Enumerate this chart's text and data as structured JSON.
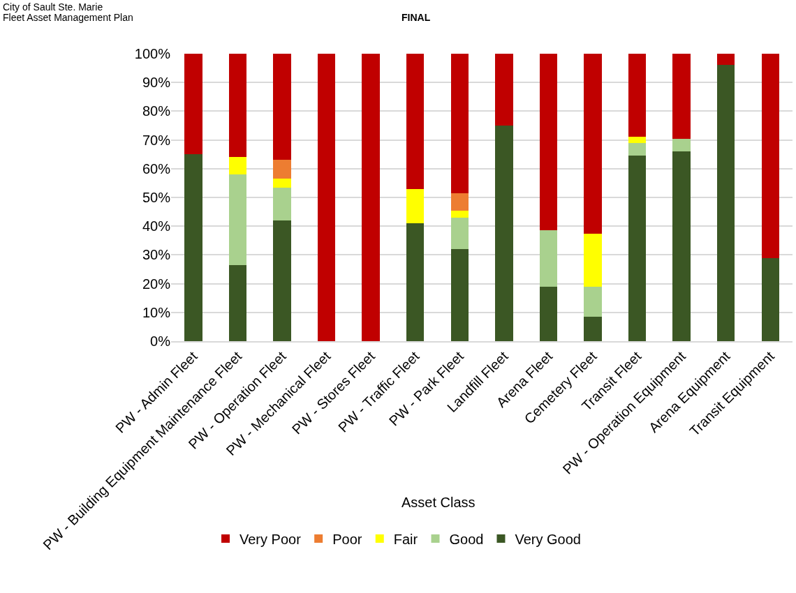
{
  "chart_data": {
    "type": "bar",
    "stacked": true,
    "xlabel": "Asset Class",
    "annotations": [
      "City of Sault Ste. Marie",
      "Fleet Asset Management Plan",
      "FINAL"
    ],
    "categories": [
      "PW - Admin Fleet",
      "PW - Building Equipment Maintenance Fleet",
      "PW - Operation Fleet",
      "PW - Mechanical Fleet",
      "PW - Stores Fleet",
      "PW - Traffic Fleet",
      "PW - Park Fleet",
      "Landfill Fleet",
      "Arena Fleet",
      "Cemetery Fleet",
      "Transit Fleet",
      "PW - Operation Equipment",
      "Arena Equipment",
      "Transit Equipment"
    ],
    "series": [
      {
        "name": "Very Good",
        "color": "#3b5724",
        "values": [
          65,
          26.5,
          42,
          0,
          0,
          41,
          32,
          75,
          19,
          8.5,
          64.5,
          66,
          96,
          29
        ]
      },
      {
        "name": "Good",
        "color": "#a9d18e",
        "values": [
          0,
          31.5,
          11.5,
          0,
          0,
          0,
          11,
          0,
          19.5,
          10.5,
          4.5,
          4.5,
          0,
          0
        ]
      },
      {
        "name": "Fair",
        "color": "#ffff00",
        "values": [
          0,
          6,
          3,
          0,
          0,
          12,
          2.5,
          0,
          0,
          18.5,
          2,
          0,
          0,
          0
        ]
      },
      {
        "name": "Poor",
        "color": "#ed7d31",
        "values": [
          0,
          0,
          6.5,
          0,
          0,
          0,
          6,
          0,
          0,
          0,
          0,
          0,
          0,
          0
        ]
      },
      {
        "name": "Very Poor",
        "color": "#c00000",
        "values": [
          35,
          36,
          37,
          100,
          100,
          47,
          48.5,
          25,
          61.5,
          62.5,
          29,
          29.5,
          4,
          71
        ]
      }
    ],
    "ylim": [
      0,
      100
    ],
    "yticks": [
      {
        "value": 0,
        "label": "0%"
      },
      {
        "value": 10,
        "label": "10%"
      },
      {
        "value": 20,
        "label": "20%"
      },
      {
        "value": 30,
        "label": "30%"
      },
      {
        "value": 40,
        "label": "40%"
      },
      {
        "value": 50,
        "label": "50%"
      },
      {
        "value": 60,
        "label": "60%"
      },
      {
        "value": 70,
        "label": "70%"
      },
      {
        "value": 80,
        "label": "80%"
      },
      {
        "value": 90,
        "label": "90%"
      },
      {
        "value": 100,
        "label": "100%"
      }
    ],
    "grid": "y",
    "legend": "bottom"
  }
}
